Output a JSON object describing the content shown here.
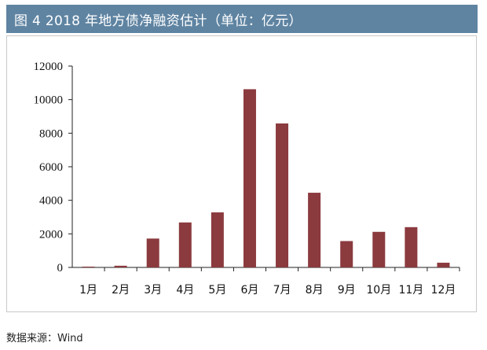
{
  "header": {
    "title": "图 4  2018 年地方债净融资估计（单位：亿元）"
  },
  "footer": {
    "source": "数据来源：Wind"
  },
  "colors": {
    "title_bar": "#5f84a2",
    "bar": "#8b3a3e"
  },
  "chart_data": {
    "type": "bar",
    "title": "",
    "xlabel": "",
    "ylabel": "",
    "categories": [
      "1月",
      "2月",
      "3月",
      "4月",
      "5月",
      "6月",
      "7月",
      "8月",
      "9月",
      "10月",
      "11月",
      "12月"
    ],
    "values": [
      30,
      100,
      1720,
      2680,
      3280,
      10620,
      8580,
      4450,
      1570,
      2120,
      2400,
      280
    ],
    "ylim": [
      0,
      12000
    ],
    "yticks": [
      0,
      2000,
      4000,
      6000,
      8000,
      10000,
      12000
    ],
    "grid": false,
    "legend": "none"
  }
}
